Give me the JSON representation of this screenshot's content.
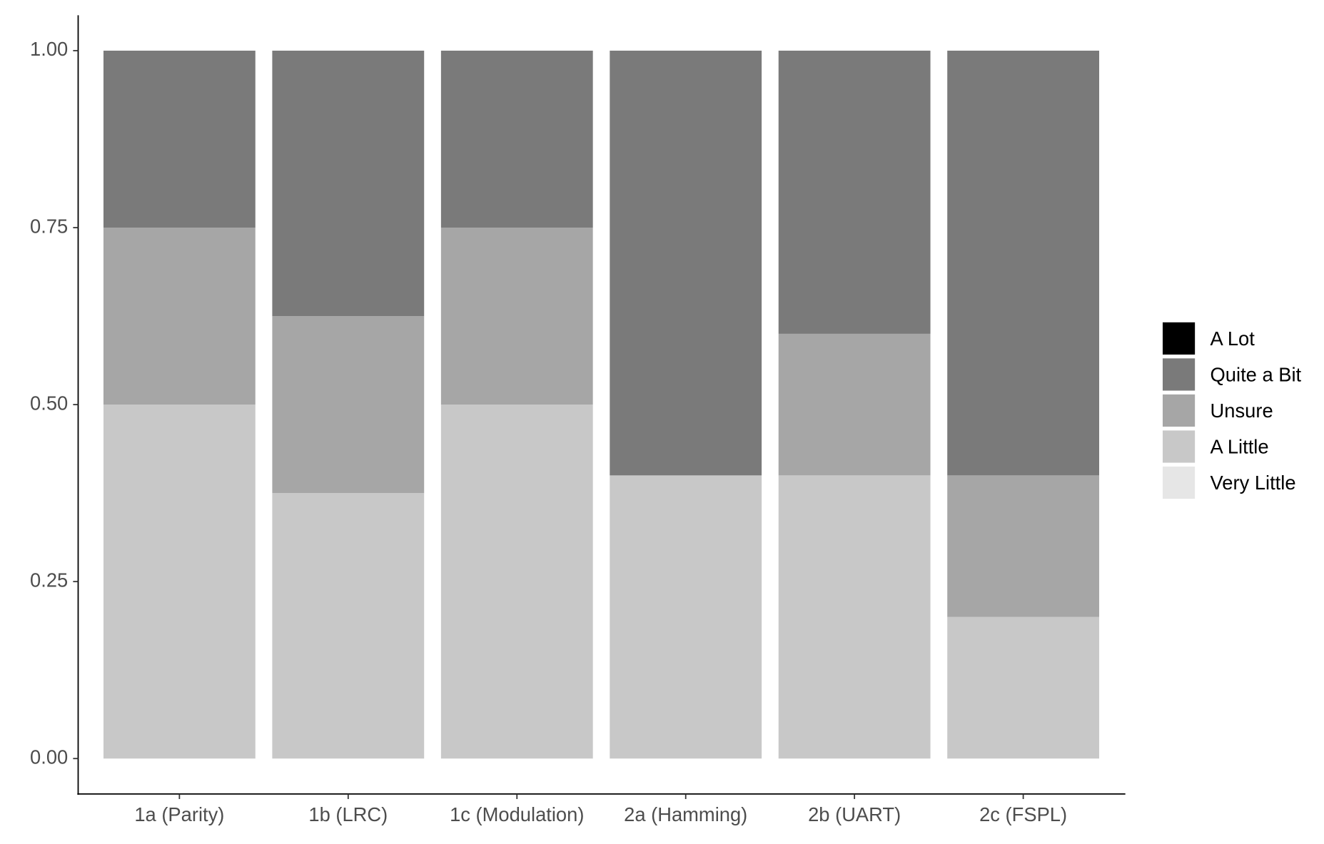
{
  "chart_data": {
    "type": "stacked_bar",
    "categories": [
      "1a (Parity)",
      "1b (LRC)",
      "1c (Modulation)",
      "2a (Hamming)",
      "2b (UART)",
      "2c (FSPL)"
    ],
    "series": [
      {
        "name": "A Lot",
        "color": "#000000",
        "values": [
          0,
          0,
          0,
          0,
          0,
          0
        ]
      },
      {
        "name": "Quite a Bit",
        "color": "#7a7a7a",
        "values": [
          0.25,
          0.375,
          0.25,
          0.6,
          0.4,
          0.6
        ]
      },
      {
        "name": "Unsure",
        "color": "#a6a6a6",
        "values": [
          0.25,
          0.25,
          0.25,
          0,
          0.2,
          0.2
        ]
      },
      {
        "name": "A Little",
        "color": "#c8c8c8",
        "values": [
          0.5,
          0.375,
          0.5,
          0.4,
          0.4,
          0.2
        ]
      },
      {
        "name": "Very Little",
        "color": "#e6e6e6",
        "values": [
          0,
          0,
          0,
          0,
          0,
          0
        ]
      }
    ],
    "ylim": [
      -0.05,
      1.05
    ],
    "yticks": [
      {
        "value": 0,
        "label": "0.00"
      },
      {
        "value": 0.25,
        "label": "0.25"
      },
      {
        "value": 0.5,
        "label": "0.50"
      },
      {
        "value": 0.75,
        "label": "0.75"
      },
      {
        "value": 1,
        "label": "1.00"
      }
    ],
    "grid": false
  }
}
